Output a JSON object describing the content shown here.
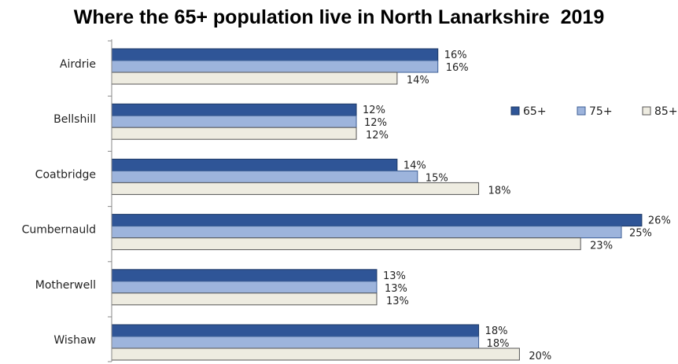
{
  "chart_data": {
    "type": "bar",
    "orientation": "horizontal",
    "title": "Where the 65+ population live in North Lanarkshire  2019",
    "categories": [
      "Airdrie",
      "Bellshill",
      "Coatbridge",
      "Cumbernauld",
      "Motherwell",
      "Wishaw"
    ],
    "series": [
      {
        "name": "65+",
        "values": [
          16,
          12,
          14,
          26,
          13,
          18
        ],
        "color": "#2f5597",
        "border": "#1f3a66"
      },
      {
        "name": "75+",
        "values": [
          16,
          12,
          15,
          25,
          13,
          18
        ],
        "color": "#9db4dc",
        "border": "#3e5f96"
      },
      {
        "name": "85+",
        "values": [
          14,
          12,
          18,
          23,
          13,
          20
        ],
        "color": "#eeece1",
        "border": "#555555"
      }
    ],
    "value_suffix": "%",
    "xlim": [
      0,
      26
    ],
    "legend_position": "right",
    "grid": false
  }
}
